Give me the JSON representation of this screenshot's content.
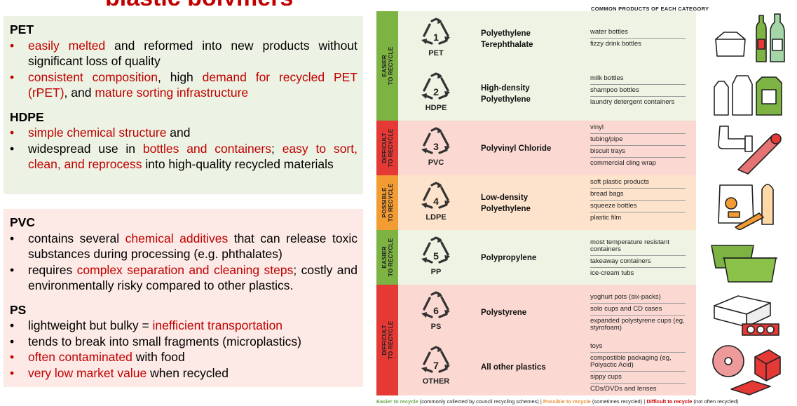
{
  "banner": {
    "text": "plastic polymers"
  },
  "left": {
    "green_panel": {
      "sections": [
        {
          "title": "PET",
          "bullets": [
            {
              "parts": [
                {
                  "t": "easily melted",
                  "red": true
                },
                {
                  "t": " and reformed into new products without significant loss of quality",
                  "red": false
                }
              ]
            },
            {
              "parts": [
                {
                  "t": "consistent composition",
                  "red": true
                },
                {
                  "t": ", high ",
                  "red": false
                },
                {
                  "t": "demand for recycled PET (rPET)",
                  "red": true
                },
                {
                  "t": ", and ",
                  "red": false
                },
                {
                  "t": "mature sorting infrastructure",
                  "red": true
                }
              ]
            }
          ]
        },
        {
          "title": "HDPE",
          "bullets": [
            {
              "parts": [
                {
                  "t": "simple chemical structure",
                  "red": true
                },
                {
                  "t": " and",
                  "red": false
                }
              ]
            },
            {
              "parts": [
                {
                  "t": "widespread use in ",
                  "red": false
                },
                {
                  "t": "bottles and containers",
                  "red": true
                },
                {
                  "t": "; ",
                  "red": false
                },
                {
                  "t": "easy to sort, clean, and reprocess",
                  "red": true
                },
                {
                  "t": " into high-quality recycled materials",
                  "red": false
                }
              ]
            }
          ]
        }
      ]
    },
    "pink_panel": {
      "sections": [
        {
          "title": "PVC",
          "bullets": [
            {
              "parts": [
                {
                  "t": "contains several ",
                  "red": false
                },
                {
                  "t": "chemical additives",
                  "red": true
                },
                {
                  "t": " that can release toxic substances during processing (e.g. phthalates)",
                  "red": false
                }
              ]
            },
            {
              "parts": [
                {
                  "t": "requires ",
                  "red": false
                },
                {
                  "t": "complex separation and cleaning steps",
                  "red": true
                },
                {
                  "t": "; costly and environmentally risky compared to other plastics.",
                  "red": false
                }
              ]
            }
          ]
        },
        {
          "title": "PS",
          "bullets": [
            {
              "parts": [
                {
                  "t": "lightweight but bulky = ",
                  "red": false
                },
                {
                  "t": "inefficient transportation",
                  "red": true
                }
              ]
            },
            {
              "parts": [
                {
                  "t": "tends to break into small fragments (microplastics)",
                  "red": false
                }
              ]
            },
            {
              "parts": [
                {
                  "t": "often contaminated",
                  "red": true
                },
                {
                  "t": " with food",
                  "red": false
                }
              ]
            },
            {
              "parts": [
                {
                  "t": "very low market value",
                  "red": true
                },
                {
                  "t": " when recycled",
                  "red": false
                }
              ]
            }
          ]
        }
      ]
    }
  },
  "infographic": {
    "header": "COMMON PRODUCTS OF EACH CATEGORY",
    "rows": [
      {
        "code": "1",
        "abbr": "PET",
        "name": [
          "Polyethylene",
          "Terephthalate"
        ],
        "category": "easier",
        "products": [
          "water bottles",
          "fizzy drink bottles"
        ],
        "icon": "bottles-and-tray-icon"
      },
      {
        "code": "2",
        "abbr": "HDPE",
        "name": [
          "High-density",
          "Polyethylene"
        ],
        "category": "easier",
        "products": [
          "milk bottles",
          "shampoo bottles",
          "laundry detergent containers"
        ],
        "icon": "jugs-icon"
      },
      {
        "code": "3",
        "abbr": "PVC",
        "name": [
          "Polyvinyl Chloride"
        ],
        "category": "difficult",
        "products": [
          "vinyl",
          "tubing/pipe",
          "biscuit trays",
          "commercial cling wrap"
        ],
        "icon": "pipe-and-wrap-icon"
      },
      {
        "code": "4",
        "abbr": "LDPE",
        "name": [
          "Low-density",
          "Polyethylene"
        ],
        "category": "possible",
        "products": [
          "soft plastic products",
          "bread bags",
          "squeeze bottles",
          "plastic film"
        ],
        "icon": "bags-icon"
      },
      {
        "code": "5",
        "abbr": "PP",
        "name": [
          "Polypropylene"
        ],
        "category": "easier",
        "products": [
          "most temperature resistant containers",
          "takeaway containers",
          "ice-cream tubs"
        ],
        "icon": "tubs-icon"
      },
      {
        "code": "6",
        "abbr": "PS",
        "name": [
          "Polystyrene"
        ],
        "category": "difficult",
        "products": [
          "yoghurt pots (six-packs)",
          "solo cups and CD cases",
          "expanded polystyrene cups (eg, styrofoam)"
        ],
        "icon": "foam-box-icon"
      },
      {
        "code": "7",
        "abbr": "OTHER",
        "name": [
          "All other plastics"
        ],
        "category": "difficult",
        "products": [
          "toys",
          "compostible packaging (eg, Polyactic Acid)",
          "sippy cups",
          "CDs/DVDs and lenses"
        ],
        "icon": "disc-and-toy-icon"
      }
    ],
    "groups": [
      {
        "label_top": "EASIER",
        "label_bottom": "TO RECYCLE",
        "category": "easier"
      },
      {
        "label_top": "DIFFICULT",
        "label_bottom": "TO RECYCLE",
        "category": "difficult"
      },
      {
        "label_top": "POSSIBLE",
        "label_bottom": "TO RECYCLE",
        "category": "possible"
      },
      {
        "label_top": "EASIER",
        "label_bottom": "TO RECYCLE",
        "category": "easier"
      },
      {
        "label_top": "DIFFICULT",
        "label_bottom": "TO RECYCLE",
        "category": "difficult"
      }
    ],
    "footer": {
      "easier_label": "Easier to recycle",
      "easier_note": " (commonly collected by council recycling schemes)  |  ",
      "possible_label": "Possible to recycle",
      "possible_note": " (sometimes recycled)  |  ",
      "difficult_label": "Difficult to recycle",
      "difficult_note": " (not often recycled)"
    },
    "colors": {
      "easier_stripe": "#7cb342",
      "easier_bg": "#eef3e3",
      "difficult_stripe": "#e53935",
      "difficult_bg": "#fbd9d2",
      "possible_stripe": "#f39c34",
      "possible_bg": "#fde3cc"
    }
  }
}
